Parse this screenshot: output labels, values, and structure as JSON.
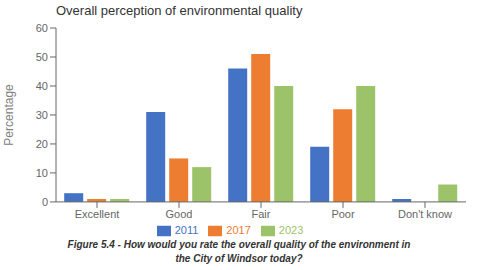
{
  "chart_data": {
    "type": "bar",
    "title": "Overall perception of environmental quality",
    "categories": [
      "Excellent",
      "Good",
      "Fair",
      "Poor",
      "Don't know"
    ],
    "series": [
      {
        "name": "2011",
        "color": "#4472C4",
        "values": [
          3,
          31,
          46,
          19,
          1
        ]
      },
      {
        "name": "2017",
        "color": "#ED7D31",
        "values": [
          1,
          15,
          51,
          32,
          0
        ]
      },
      {
        "name": "2023",
        "color": "#9DC36A",
        "values": [
          1,
          12,
          40,
          40,
          6
        ]
      }
    ],
    "ylabel": "Percentage",
    "ylim": [
      0,
      60
    ],
    "yticks": [
      0,
      10,
      20,
      30,
      40,
      50,
      60
    ],
    "grid": false,
    "legend": "bottom",
    "annotations": [
      "Figure 5.4 - How would you rate the overall quality of the environment in",
      "the City of Windsor today?"
    ]
  }
}
